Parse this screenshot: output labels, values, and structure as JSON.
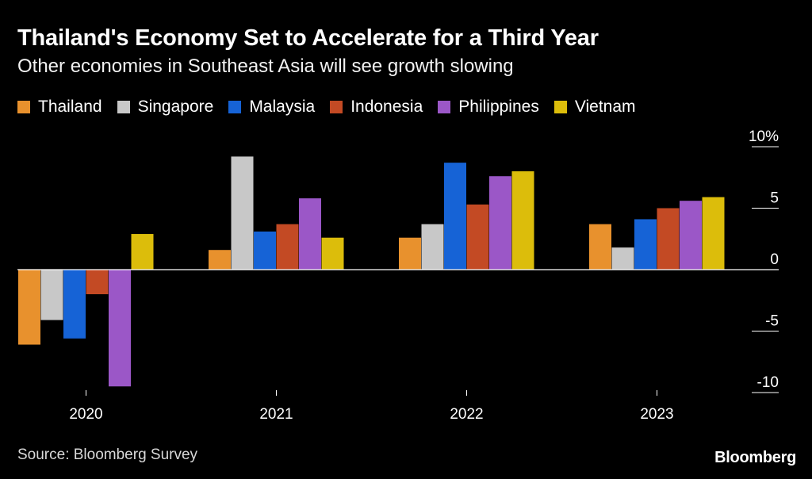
{
  "title": "Thailand's Economy Set to Accelerate for a Third Year",
  "subtitle": "Other economies in Southeast Asia will see growth slowing",
  "source": "Source: Bloomberg Survey",
  "brand": "Bloomberg",
  "chart_data": {
    "type": "bar",
    "title": "Thailand's Economy Set to Accelerate for a Third Year",
    "subtitle": "Other economies in Southeast Asia will see growth slowing",
    "categories": [
      "2020",
      "2021",
      "2022",
      "2023"
    ],
    "series": [
      {
        "name": "Thailand",
        "color": "#e8912d",
        "values": [
          -6.1,
          1.6,
          2.6,
          3.7
        ]
      },
      {
        "name": "Singapore",
        "color": "#c8c8c8",
        "values": [
          -4.1,
          9.2,
          3.7,
          1.8
        ]
      },
      {
        "name": "Malaysia",
        "color": "#1663d6",
        "values": [
          -5.6,
          3.1,
          8.7,
          4.1
        ]
      },
      {
        "name": "Indonesia",
        "color": "#c34a24",
        "values": [
          -2.0,
          3.7,
          5.3,
          5.0
        ]
      },
      {
        "name": "Philippines",
        "color": "#9b57c7",
        "values": [
          -9.5,
          5.8,
          7.6,
          5.6
        ]
      },
      {
        "name": "Vietnam",
        "color": "#dcbd0b",
        "values": [
          2.9,
          2.6,
          8.0,
          5.9
        ]
      }
    ],
    "yticks": [
      10,
      5,
      0,
      -5,
      -10
    ],
    "ytick_labels": [
      "10%",
      "5",
      "0",
      "-5",
      "-10"
    ],
    "ylim": [
      -10,
      10
    ],
    "xlabel": "",
    "ylabel": "",
    "legend_position": "top-left",
    "grid": false
  }
}
